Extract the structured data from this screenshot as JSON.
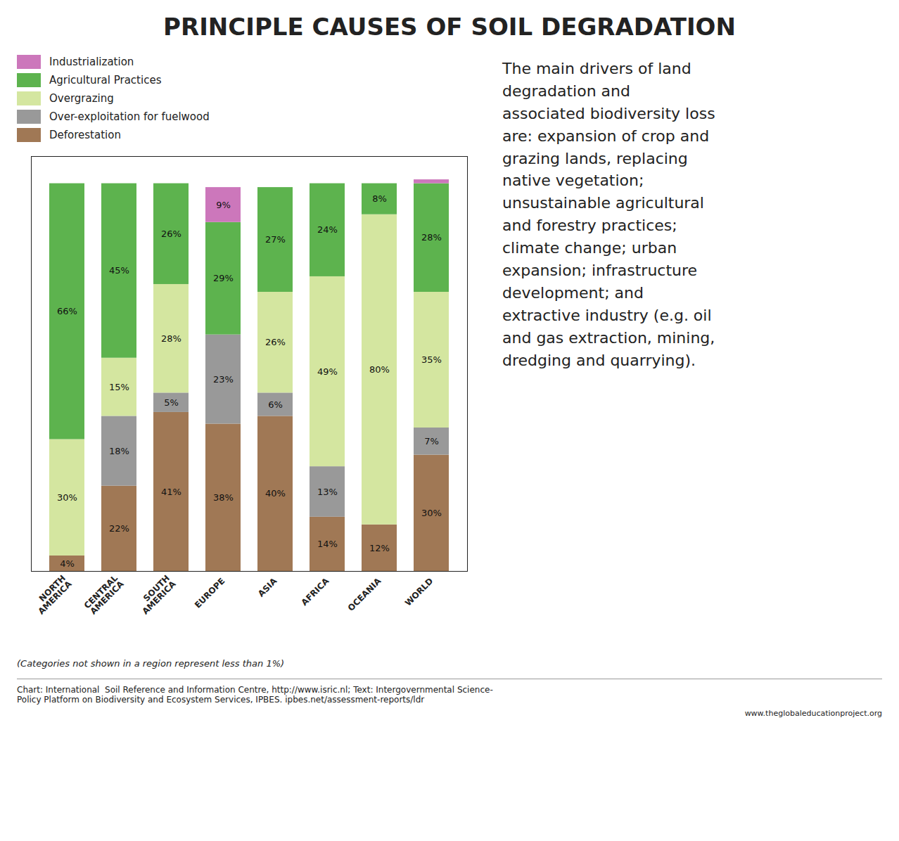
{
  "chart_data": {
    "type": "bar",
    "title": "PRINCIPLE CAUSES OF SOIL DEGRADATION",
    "stacked": true,
    "data_labels": true,
    "tick_labels": "x",
    "grid": false,
    "ylim": [
      0,
      107
    ],
    "yticks": [],
    "categories": [
      "NORTH\nAMERICA",
      "CENTRAL\nAMERICA",
      "SOUTH\nAMERICA",
      "EUROPE",
      "ASIA",
      "AFRICA",
      "OCEANIA",
      "WORLD"
    ],
    "series": [
      {
        "name": "Deforestation",
        "color": "#A07855",
        "values": [
          4,
          22,
          41,
          38,
          40,
          14,
          12,
          30
        ],
        "value_labels": [
          "4%",
          "22%",
          "41%",
          "38%",
          "40%",
          "14%",
          "12%",
          "30%"
        ]
      },
      {
        "name": "Over-exploitation for fuelwood",
        "color": "#999999",
        "values": [
          0,
          18,
          5,
          23,
          6,
          13,
          0,
          7
        ],
        "value_labels": [
          null,
          "18%",
          "5%",
          "23%",
          "6%",
          "13%",
          null,
          "7%"
        ]
      },
      {
        "name": "Overgrazing",
        "color": "#D4E6A0",
        "values": [
          30,
          15,
          28,
          0,
          26,
          49,
          80,
          35
        ],
        "value_labels": [
          "30%",
          "15%",
          "28%",
          null,
          "26%",
          "49%",
          "80%",
          "35%"
        ]
      },
      {
        "name": "Agricultural Practices",
        "color": "#5DB34E",
        "values": [
          66,
          45,
          26,
          29,
          27,
          24,
          8,
          28
        ],
        "value_labels": [
          "66%",
          "45%",
          "26%",
          "29%",
          "27%",
          "24%",
          "8%",
          "28%"
        ]
      },
      {
        "name": "Industrialization",
        "color": "#CC77BB",
        "values": [
          0,
          0,
          0,
          9,
          0,
          0,
          0,
          1
        ],
        "value_labels": [
          null,
          null,
          null,
          "9%",
          null,
          null,
          null,
          null
        ]
      }
    ],
    "annotations": [
      "The main drivers of land\ndegradation and\nassociated biodiversity loss\nare: expansion of crop and\ngrazing lands, replacing\nnative vegetation;\nunsustainable agricultural\nand forestry practices;\nclimate change; urban\nexpansion; infrastructure\ndevelopment; and\nextractive industry (e.g. oil\nand gas extraction, mining,\ndredging and quarrying).",
      "(Categories not shown in a region represent less than 1%)",
      "Chart: International  Soil Reference and Information Centre, http://www.isric.nl; Text: Intergovernmental Science-\nPolicy Platform on Biodiversity and Ecosystem Services, IPBES. ipbes.net/assessment-reports/ldr",
      "www.theglobaleducationproject.org"
    ]
  }
}
